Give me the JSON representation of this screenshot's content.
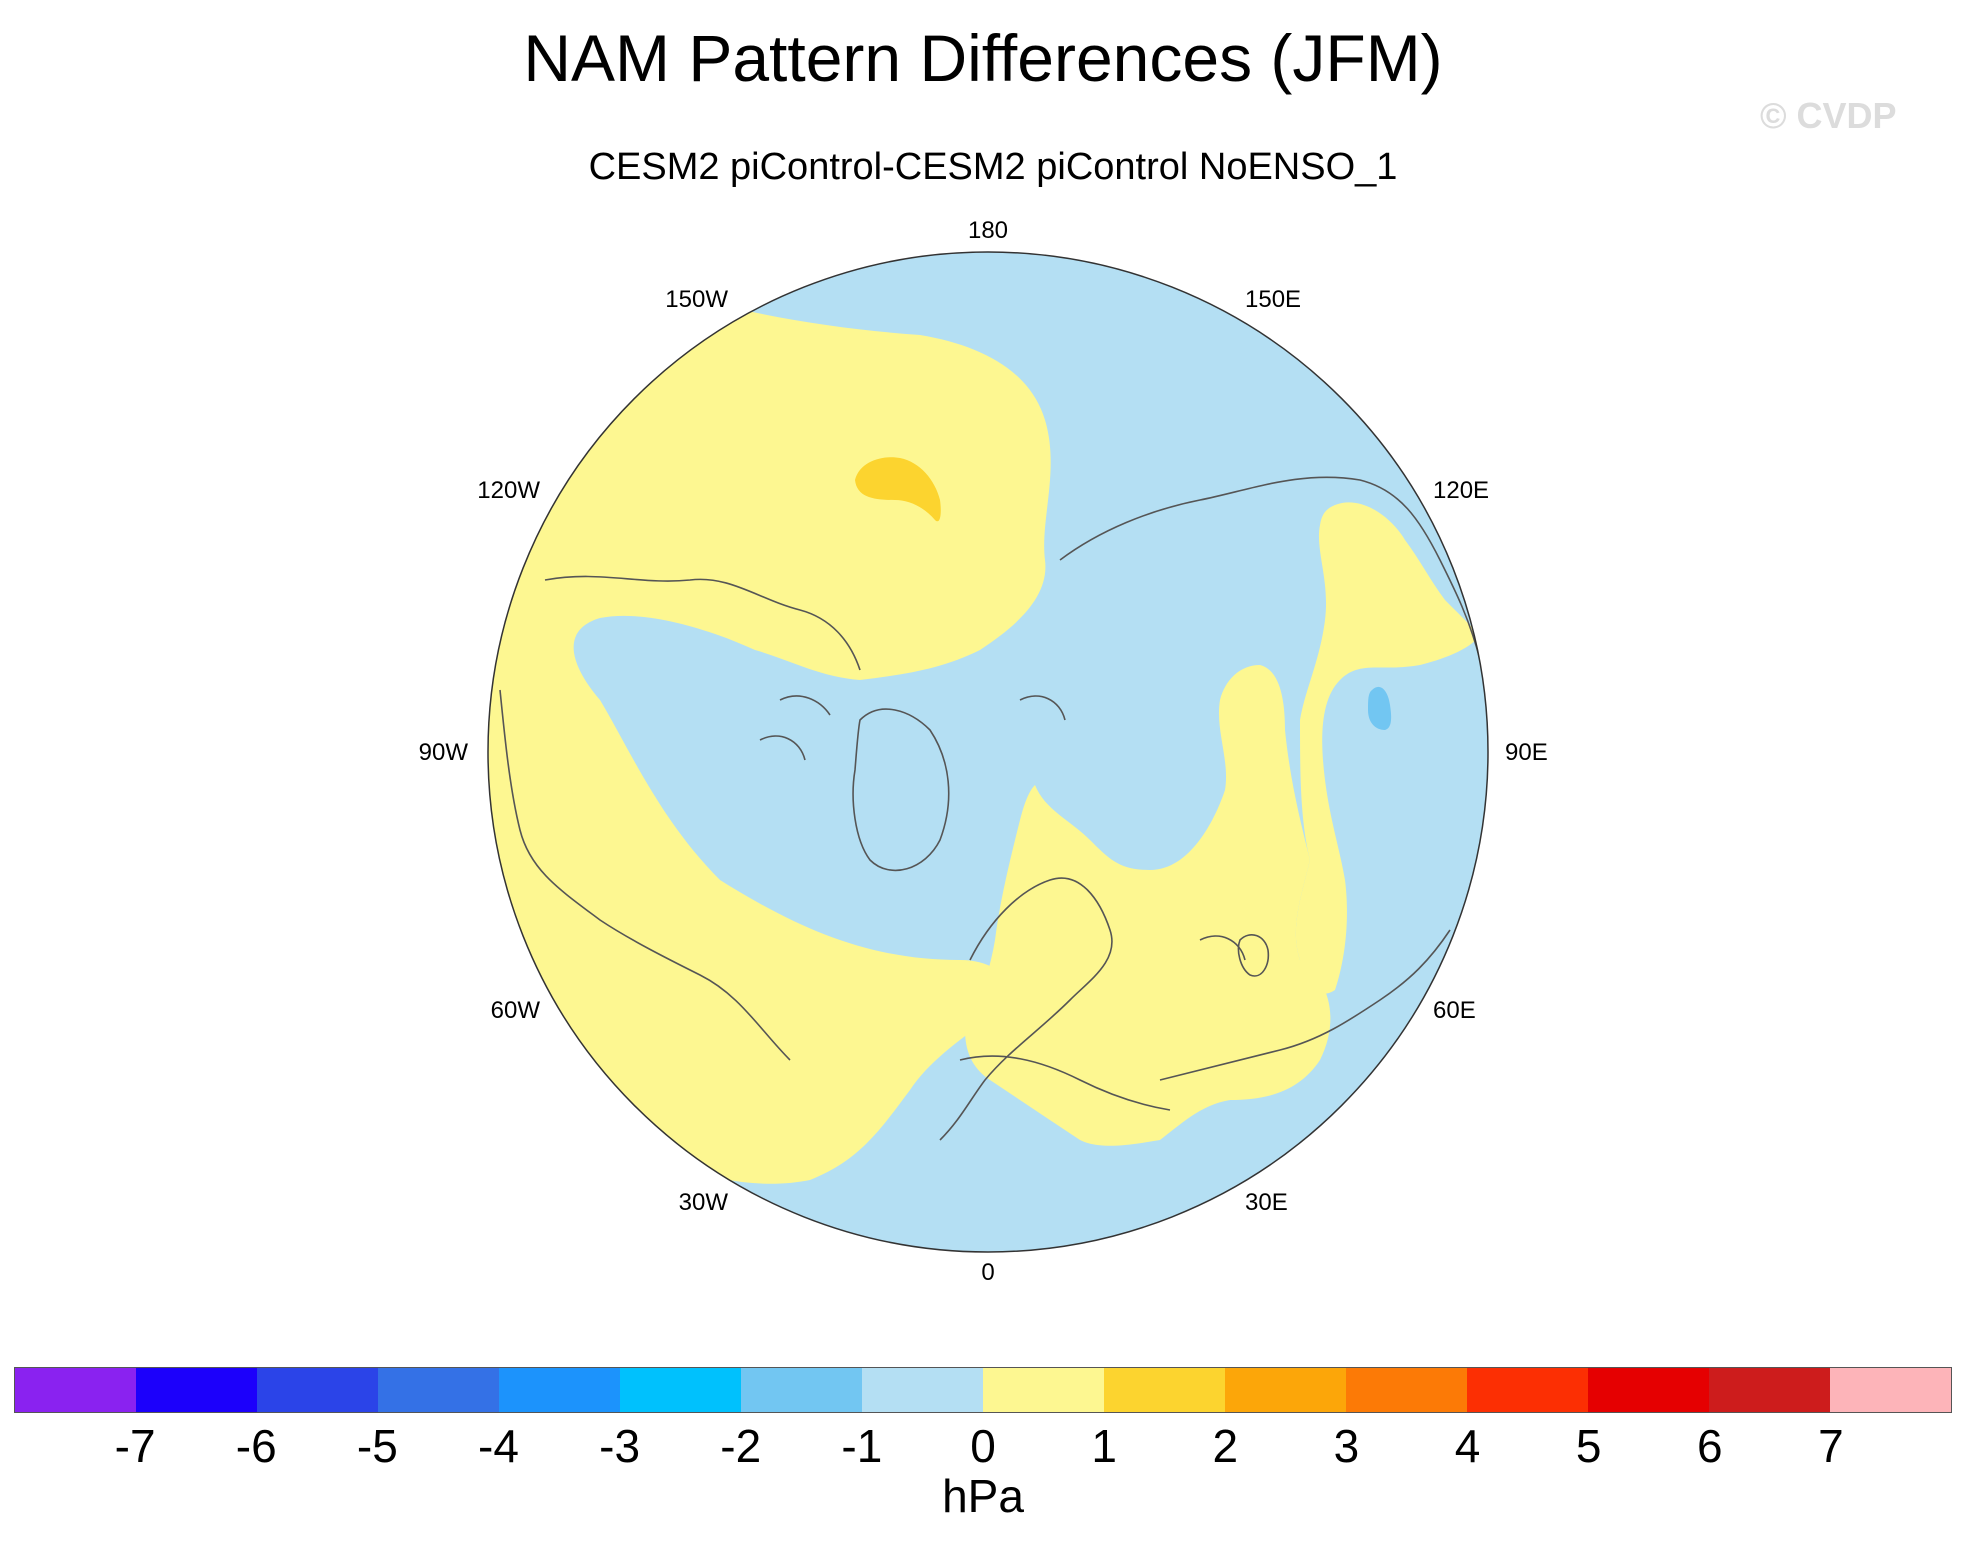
{
  "title": "NAM Pattern Differences (JFM)",
  "subtitle": "CESM2 piControl-CESM2 piControl NoENSO_1",
  "watermark": "© CVDP",
  "map": {
    "projection": "polar-stereographic-north",
    "longitude_labels": [
      "180",
      "150E",
      "120E",
      "90E",
      "60E",
      "30E",
      "0",
      "30W",
      "60W",
      "90W",
      "120W",
      "150W"
    ],
    "field_colors": {
      "positive_0_to_1": "#fdf791",
      "positive_1_to_2": "#fcd42f",
      "negative_0_to_m1": "#b4dff3",
      "negative_m1_to_m2": "#72c6f2"
    },
    "coastline_color": "#555555"
  },
  "colorbar": {
    "ticks": [
      "-7",
      "-6",
      "-5",
      "-4",
      "-3",
      "-2",
      "-1",
      "0",
      "1",
      "2",
      "3",
      "4",
      "5",
      "6",
      "7"
    ],
    "colors": [
      "#8a22f0",
      "#1c00fb",
      "#2b44e8",
      "#3471e6",
      "#1c93fc",
      "#00c1fd",
      "#72c6f2",
      "#b4dff3",
      "#fdf791",
      "#fcd42f",
      "#fca609",
      "#fc7a06",
      "#fc2f03",
      "#e50001",
      "#cd1c1c",
      "#fdb4b9"
    ],
    "units": "hPa"
  }
}
